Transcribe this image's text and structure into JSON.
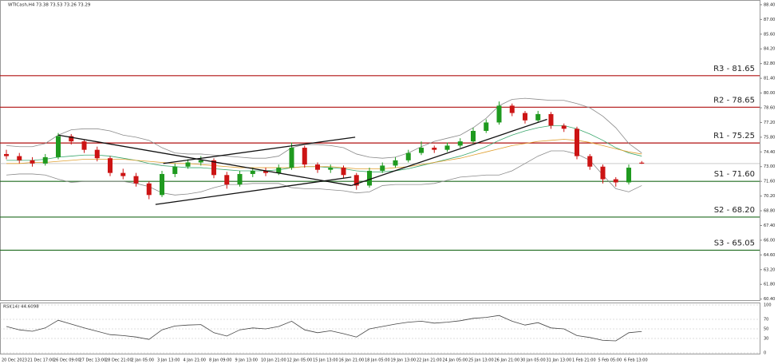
{
  "chart_data": [
    {
      "type": "candlestick",
      "title": "WTICash,H4  73.38 73.53 73.26 73.29",
      "categories": [
        "20 Dec 2023",
        null,
        "21 Dec 17:00",
        null,
        "26 Dec 09:00",
        null,
        "27 Dec 13:00",
        null,
        "28 Dec 21:00",
        null,
        "2 Jan 05:00",
        null,
        "3 Jan 13:00",
        null,
        "4 Jan 21:00",
        null,
        "8 Jan 09:00",
        null,
        "9 Jan 13:00",
        null,
        "10 Jan 21:00",
        null,
        "12 Jan 05:00",
        null,
        "15 Jan 13:00",
        null,
        "16 Jan 21:00",
        null,
        "18 Jan 05:00",
        null,
        "19 Jan 13:00",
        null,
        "22 Jan 21:00",
        null,
        "24 Jan 05:00",
        null,
        "25 Jan 13:00",
        null,
        "26 Jan 21:00",
        null,
        "30 Jan 05:00",
        null,
        "31 Jan 13:00",
        null,
        "1 Feb 21:00",
        null,
        "5 Feb 05:00",
        null,
        "6 Feb 13:00",
        null
      ],
      "ohlc": [
        [
          74.2,
          74.6,
          73.7,
          74.0
        ],
        [
          74.0,
          74.3,
          73.3,
          73.6
        ],
        [
          73.6,
          73.9,
          73.0,
          73.3
        ],
        [
          73.3,
          74.2,
          73.1,
          73.9
        ],
        [
          73.9,
          76.2,
          73.7,
          75.9
        ],
        [
          75.9,
          76.1,
          75.1,
          75.4
        ],
        [
          75.4,
          75.6,
          74.3,
          74.6
        ],
        [
          74.6,
          74.9,
          73.5,
          73.8
        ],
        [
          73.8,
          74.0,
          72.1,
          72.4
        ],
        [
          72.4,
          72.8,
          71.8,
          72.1
        ],
        [
          72.1,
          72.4,
          71.1,
          71.4
        ],
        [
          71.4,
          71.6,
          69.9,
          70.3
        ],
        [
          70.3,
          72.6,
          70.1,
          72.3
        ],
        [
          72.3,
          73.3,
          72.0,
          73.0
        ],
        [
          73.0,
          73.7,
          72.8,
          73.4
        ],
        [
          73.4,
          74.0,
          73.1,
          73.6
        ],
        [
          73.6,
          73.8,
          71.9,
          72.2
        ],
        [
          72.2,
          72.5,
          70.9,
          71.3
        ],
        [
          71.3,
          72.6,
          71.1,
          72.3
        ],
        [
          72.3,
          72.9,
          72.0,
          72.6
        ],
        [
          72.6,
          72.9,
          72.1,
          72.4
        ],
        [
          72.4,
          73.2,
          72.2,
          72.9
        ],
        [
          72.9,
          75.3,
          72.7,
          74.8
        ],
        [
          74.8,
          75.0,
          72.9,
          73.2
        ],
        [
          73.2,
          73.4,
          72.4,
          72.7
        ],
        [
          72.7,
          73.2,
          72.4,
          72.9
        ],
        [
          72.9,
          73.1,
          71.9,
          72.2
        ],
        [
          72.2,
          72.4,
          70.8,
          71.2
        ],
        [
          71.2,
          72.9,
          71.0,
          72.6
        ],
        [
          72.6,
          73.4,
          72.4,
          73.1
        ],
        [
          73.1,
          73.9,
          72.9,
          73.6
        ],
        [
          73.6,
          74.6,
          73.4,
          74.3
        ],
        [
          74.3,
          75.4,
          74.1,
          74.8
        ],
        [
          74.8,
          75.0,
          74.3,
          74.6
        ],
        [
          74.6,
          75.3,
          74.4,
          75.0
        ],
        [
          75.0,
          75.7,
          74.8,
          75.4
        ],
        [
          75.4,
          76.7,
          75.2,
          76.4
        ],
        [
          76.4,
          77.5,
          76.2,
          77.2
        ],
        [
          77.2,
          79.2,
          77.0,
          78.8
        ],
        [
          78.8,
          79.0,
          77.8,
          78.1
        ],
        [
          78.1,
          78.3,
          77.1,
          77.4
        ],
        [
          77.4,
          78.3,
          77.2,
          78.0
        ],
        [
          78.0,
          78.2,
          76.6,
          76.9
        ],
        [
          76.9,
          77.1,
          76.3,
          76.6
        ],
        [
          76.6,
          76.8,
          73.7,
          74.0
        ],
        [
          74.0,
          74.2,
          72.7,
          73.0
        ],
        [
          73.0,
          73.2,
          71.4,
          71.8
        ],
        [
          71.8,
          72.0,
          71.1,
          71.5
        ],
        [
          71.5,
          73.2,
          71.3,
          72.9
        ],
        [
          73.38,
          73.53,
          73.26,
          73.29
        ]
      ],
      "up_color": "#1f9a1f",
      "down_color": "#cc1414",
      "series": [
        {
          "color": "#3aa76d",
          "values": [
            73.6,
            73.6,
            73.6,
            73.7,
            73.9,
            74.0,
            74.1,
            74.1,
            74.0,
            73.8,
            73.6,
            73.3,
            73.1,
            73.0,
            72.9,
            72.9,
            72.8,
            72.7,
            72.6,
            72.6,
            72.6,
            72.7,
            72.9,
            73.0,
            73.0,
            72.9,
            72.8,
            72.6,
            72.5,
            72.5,
            72.6,
            72.8,
            73.1,
            73.4,
            73.7,
            74.0,
            74.4,
            74.9,
            75.5,
            76.0,
            76.4,
            76.7,
            76.9,
            76.9,
            76.6,
            76.1,
            75.5,
            74.8,
            74.3,
            74.0
          ]
        },
        {
          "color": "#e0a030",
          "values": [
            73.3,
            73.3,
            73.4,
            73.4,
            73.5,
            73.6,
            73.7,
            73.7,
            73.7,
            73.7,
            73.6,
            73.5,
            73.4,
            73.3,
            73.3,
            73.2,
            73.1,
            73.0,
            72.9,
            72.9,
            72.9,
            72.9,
            72.9,
            73.0,
            73.0,
            73.0,
            72.9,
            72.8,
            72.8,
            72.8,
            72.9,
            73.0,
            73.2,
            73.4,
            73.6,
            73.8,
            74.1,
            74.4,
            74.7,
            75.0,
            75.2,
            75.4,
            75.5,
            75.6,
            75.5,
            75.3,
            75.0,
            74.7,
            74.4,
            74.2
          ]
        },
        {
          "color": "#8a8a8a",
          "values": [
            75.0,
            74.9,
            74.9,
            75.2,
            76.0,
            76.5,
            76.6,
            76.6,
            76.4,
            76.0,
            75.8,
            75.5,
            74.8,
            74.3,
            74.2,
            74.2,
            74.1,
            74.0,
            73.9,
            73.8,
            73.8,
            74.0,
            74.8,
            75.1,
            75.1,
            75.0,
            74.8,
            74.2,
            73.9,
            73.8,
            73.9,
            74.3,
            74.9,
            75.4,
            75.7,
            76.0,
            76.7,
            77.6,
            78.8,
            79.4,
            79.5,
            79.4,
            79.3,
            79.3,
            79.0,
            78.6,
            77.8,
            76.7,
            75.2,
            74.3
          ]
        },
        {
          "color": "#8a8a8a",
          "values": [
            72.2,
            72.3,
            72.3,
            72.2,
            71.8,
            71.5,
            71.6,
            71.6,
            71.6,
            71.6,
            71.4,
            71.1,
            70.5,
            70.3,
            70.4,
            70.6,
            71.0,
            71.3,
            71.3,
            71.4,
            71.4,
            71.4,
            71.0,
            70.9,
            70.9,
            70.8,
            70.7,
            70.5,
            70.6,
            71.2,
            71.3,
            71.3,
            71.3,
            71.4,
            71.7,
            72.0,
            72.1,
            72.2,
            72.2,
            72.6,
            73.3,
            74.0,
            74.5,
            74.5,
            74.2,
            73.6,
            72.2,
            70.9,
            70.6,
            71.2
          ]
        }
      ],
      "trendlines": [
        {
          "x": [
            4,
            26.6
          ],
          "y": [
            76.0,
            71.2
          ]
        },
        {
          "x": [
            11.5,
            26.6
          ],
          "y": [
            69.4,
            72.0
          ]
        },
        {
          "x": [
            12.1,
            26.9
          ],
          "y": [
            73.3,
            75.8
          ]
        },
        {
          "x": [
            26.6,
            41.7
          ],
          "y": [
            71.2,
            77.5
          ]
        }
      ],
      "trend_color": "#111111",
      "levels": [
        {
          "label": "R3 - 81.65",
          "value": 81.65,
          "color": "#b01010"
        },
        {
          "label": "R2 - 78.65",
          "value": 78.65,
          "color": "#b01010"
        },
        {
          "label": "R1 - 75.25",
          "value": 75.25,
          "color": "#b01010"
        },
        {
          "label": "S1 - 71.60",
          "value": 71.6,
          "color": "#1f6b1f"
        },
        {
          "label": "S2 - 68.20",
          "value": 68.2,
          "color": "#1f6b1f"
        },
        {
          "label": "S3 - 65.05",
          "value": 65.05,
          "color": "#1f6b1f"
        }
      ],
      "ylim": [
        60.3,
        88.85
      ],
      "yticks": [
        {
          "value": 60.4,
          "label": "60.40"
        },
        {
          "value": 61.8,
          "label": "61.80"
        },
        {
          "value": 63.2,
          "label": "63.20"
        },
        {
          "value": 64.6,
          "label": "64.60"
        },
        {
          "value": 66.0,
          "label": "66.00"
        },
        {
          "value": 67.4,
          "label": "67.40"
        },
        {
          "value": 68.8,
          "label": "68.80"
        },
        {
          "value": 70.2,
          "label": "70.20"
        },
        {
          "value": 71.6,
          "label": "71.60"
        },
        {
          "value": 73.0,
          "label": "73.00"
        },
        {
          "value": 74.4,
          "label": "74.40"
        },
        {
          "value": 75.8,
          "label": "75.80"
        },
        {
          "value": 77.2,
          "label": "77.20"
        },
        {
          "value": 78.6,
          "label": "78.60"
        },
        {
          "value": 80.0,
          "label": "80.00"
        },
        {
          "value": 81.4,
          "label": "81.40"
        },
        {
          "value": 82.8,
          "label": "82.80"
        },
        {
          "value": 84.2,
          "label": "84.20"
        },
        {
          "value": 85.6,
          "label": "85.60"
        },
        {
          "value": 87.0,
          "label": "87.00"
        },
        {
          "value": 88.4,
          "label": "88.40"
        }
      ]
    },
    {
      "type": "line",
      "title": "RSI(14) 44.6098",
      "color": "#444444",
      "values": [
        55,
        48,
        45,
        52,
        68,
        60,
        52,
        45,
        38,
        36,
        33,
        28,
        48,
        56,
        58,
        59,
        42,
        35,
        48,
        52,
        50,
        55,
        66,
        48,
        42,
        46,
        40,
        33,
        50,
        55,
        60,
        64,
        66,
        62,
        64,
        67,
        72,
        74,
        78,
        66,
        58,
        63,
        52,
        50,
        36,
        32,
        26,
        25,
        42,
        44.61
      ],
      "ylim": [
        0,
        100
      ],
      "yticks": [
        0,
        30,
        50,
        70,
        100
      ]
    }
  ]
}
